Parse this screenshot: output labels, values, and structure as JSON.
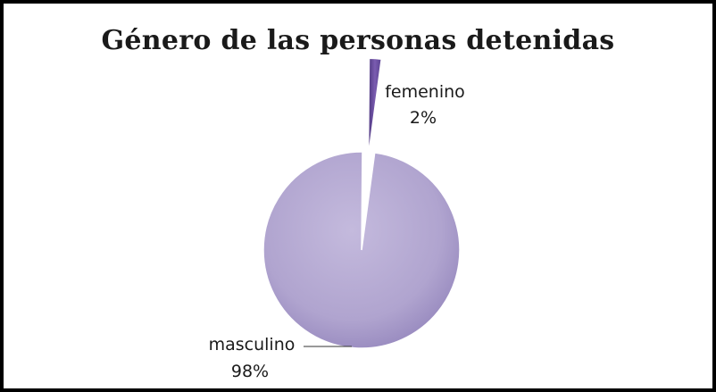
{
  "chart_data": {
    "type": "pie",
    "title": "Género de las personas detenidas",
    "slices": [
      {
        "label": "femenino",
        "percent_label": "2%",
        "value": 2,
        "color": "#6a4e9c",
        "exploded": true
      },
      {
        "label": "masculino",
        "percent_label": "98%",
        "value": 98,
        "color": "#b3a7d1",
        "exploded": false
      }
    ],
    "legend": "none"
  }
}
